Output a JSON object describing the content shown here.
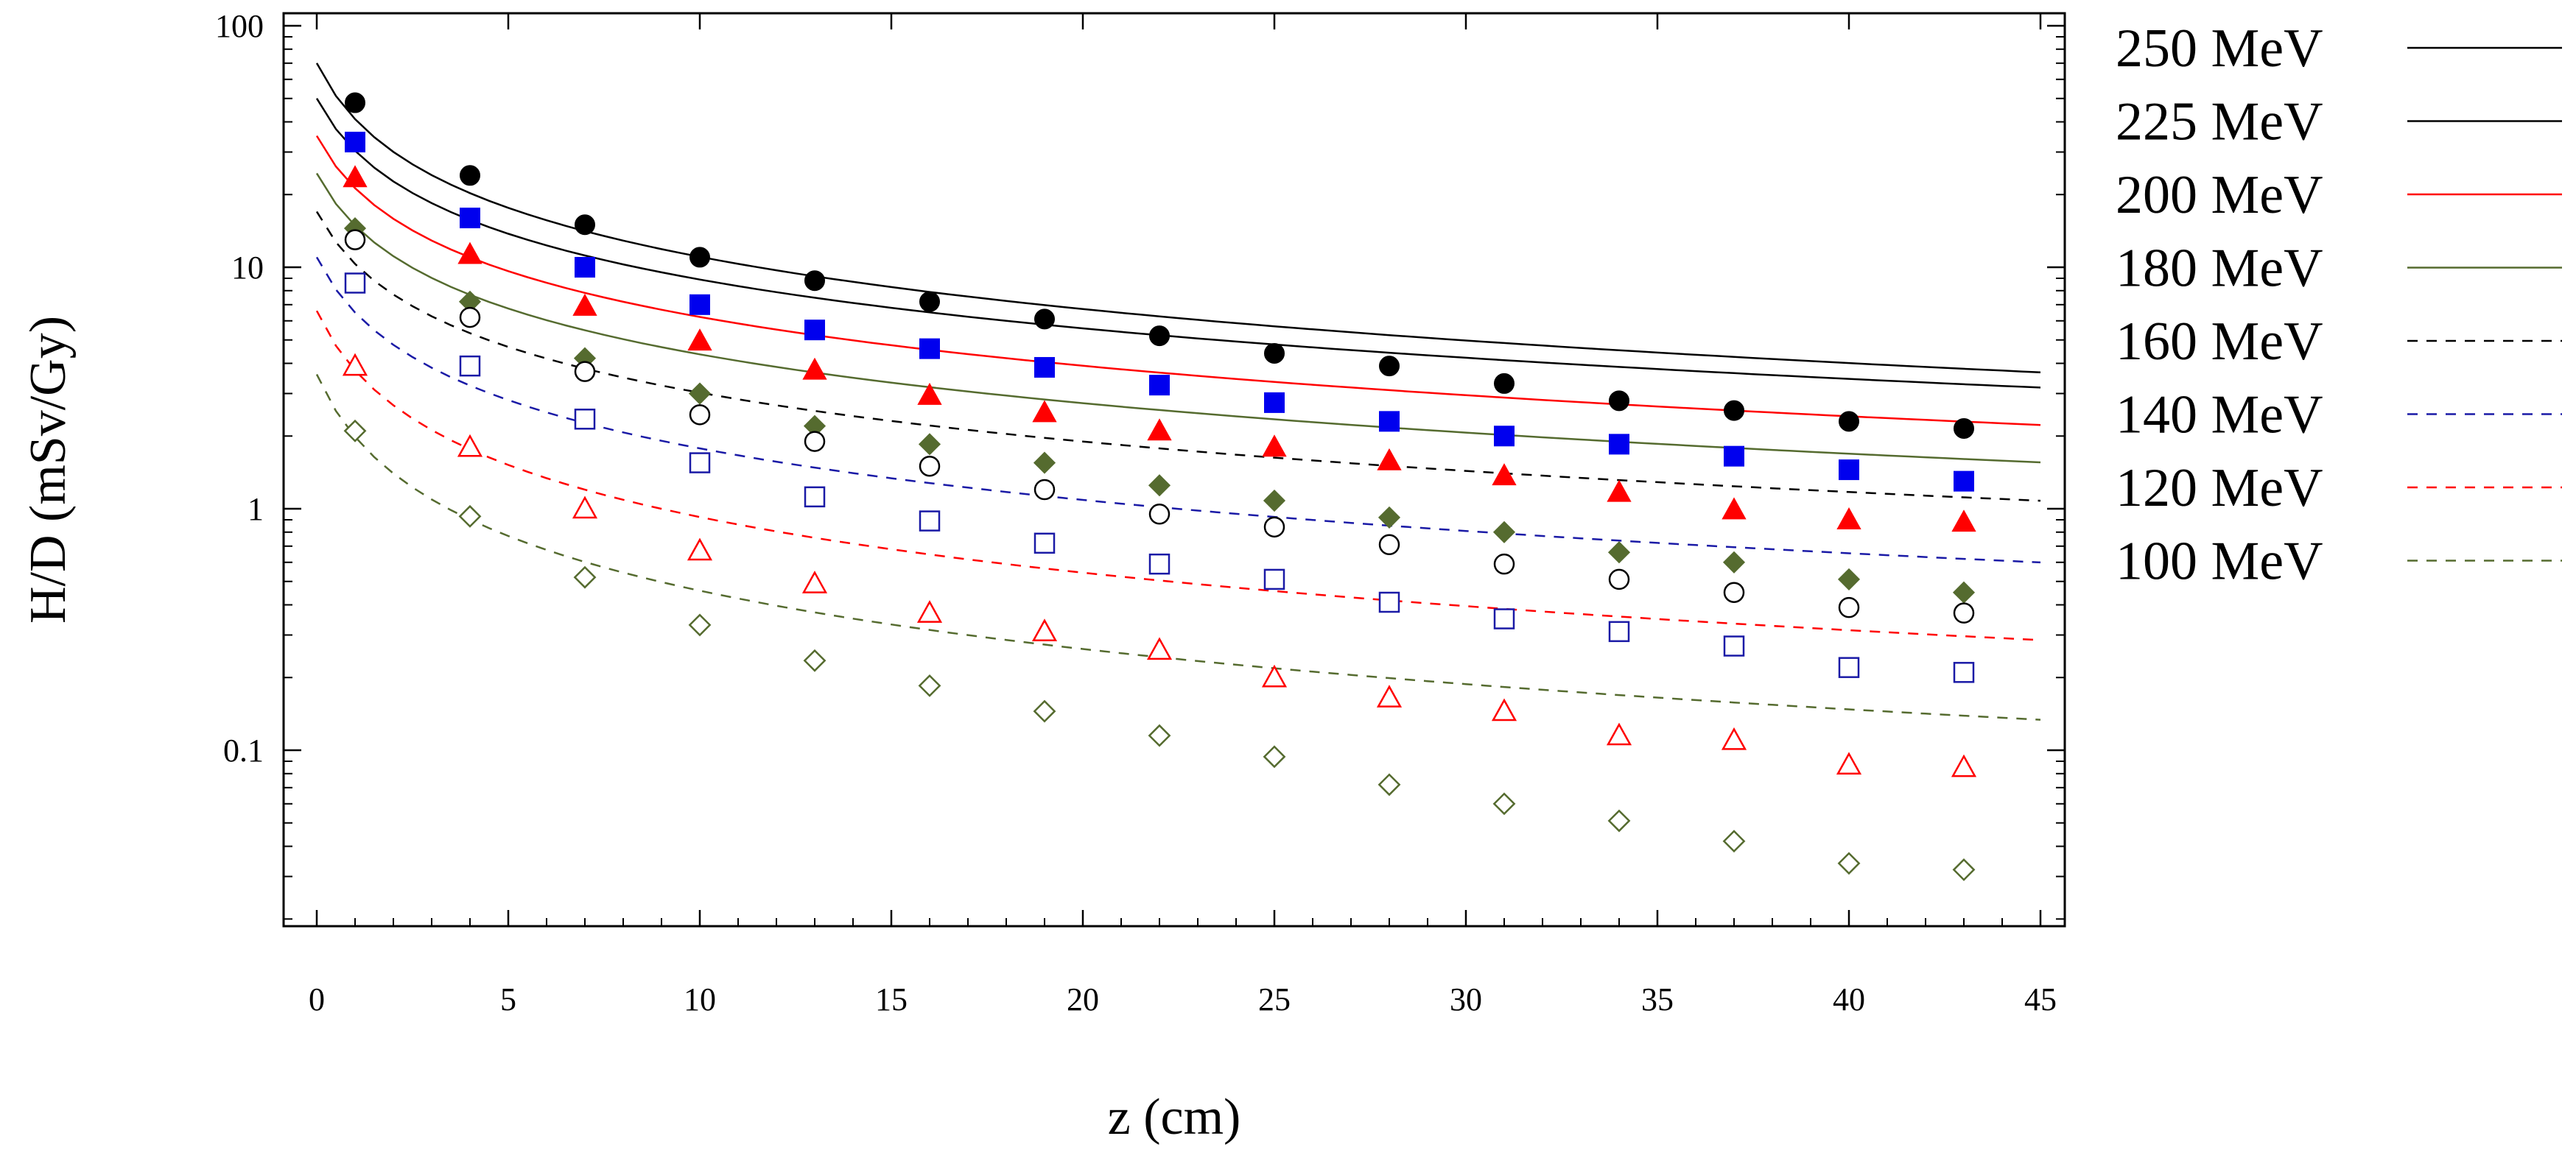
{
  "chart_data": {
    "type": "scatter",
    "title": "",
    "xlabel": "z (cm)",
    "ylabel": "H/D (mSv/Gy)",
    "xlim": [
      -1,
      46
    ],
    "ylim": [
      0.022,
      120
    ],
    "yscale": "log",
    "x_ticks": [
      0,
      5,
      10,
      15,
      20,
      25,
      30,
      35,
      40,
      45
    ],
    "x_tick_labels": [
      "0",
      "5",
      "10",
      "15",
      "20",
      "25",
      "30",
      "35",
      "40",
      "45"
    ],
    "y_ticks": [
      0.1,
      1,
      10,
      100
    ],
    "y_tick_labels": [
      "0.1",
      "1",
      "10",
      "100"
    ],
    "legend_position": "outside-right",
    "x": [
      1,
      4,
      7,
      10,
      13,
      16,
      19,
      22,
      25,
      28,
      31,
      34,
      37,
      40,
      43
    ],
    "series": [
      {
        "name": "250 MeV",
        "color": "#000000",
        "line": "solid",
        "marker": "circle-filled",
        "values": [
          48,
          24,
          15,
          11,
          8.8,
          7.2,
          6.1,
          5.2,
          4.4,
          3.9,
          3.3,
          2.8,
          2.55,
          2.3,
          2.15
        ],
        "fit_a": 70,
        "fit_b": 0.77
      },
      {
        "name": "225 MeV",
        "color": "#0000ee",
        "fit_color": "#000000",
        "line": "solid",
        "marker": "square-filled",
        "values": [
          33,
          16,
          10,
          7.0,
          5.5,
          4.6,
          3.85,
          3.25,
          2.75,
          2.3,
          2.0,
          1.85,
          1.65,
          1.45,
          1.3
        ],
        "fit_a": 50,
        "fit_b": 0.72
      },
      {
        "name": "200 MeV",
        "color": "#ff0000",
        "line": "solid",
        "marker": "triangle-filled",
        "values": [
          23.5,
          11.3,
          6.9,
          4.95,
          3.75,
          2.95,
          2.5,
          2.1,
          1.8,
          1.58,
          1.37,
          1.17,
          0.99,
          0.9,
          0.88
        ],
        "fit_a": 35,
        "fit_b": 0.72
      },
      {
        "name": "180 MeV",
        "color": "#556b2f",
        "line": "solid",
        "marker": "diamond-filled",
        "values": [
          14.5,
          7.2,
          4.2,
          3.0,
          2.2,
          1.85,
          1.55,
          1.25,
          1.08,
          0.92,
          0.8,
          0.66,
          0.6,
          0.51,
          0.45
        ],
        "fit_a": 24.5,
        "fit_b": 0.72
      },
      {
        "name": "160 MeV",
        "color": "#000000",
        "line": "dashed",
        "marker": "circle-open",
        "values": [
          13,
          6.2,
          3.7,
          2.45,
          1.9,
          1.5,
          1.2,
          0.95,
          0.84,
          0.71,
          0.59,
          0.51,
          0.45,
          0.39,
          0.37
        ],
        "fit_a": 17,
        "fit_b": 0.72
      },
      {
        "name": "140 MeV",
        "color": "#1a1aa6",
        "line": "dashed",
        "marker": "square-open",
        "values": [
          8.6,
          3.9,
          2.35,
          1.55,
          1.12,
          0.89,
          0.72,
          0.59,
          0.51,
          0.41,
          0.35,
          0.31,
          0.27,
          0.22,
          0.21
        ],
        "fit_a": 11,
        "fit_b": 0.76
      },
      {
        "name": "120 MeV",
        "color": "#ff0000",
        "line": "dashed",
        "marker": "triangle-open",
        "values": [
          3.9,
          1.8,
          1.0,
          0.67,
          0.49,
          0.37,
          0.31,
          0.26,
          0.2,
          0.165,
          0.145,
          0.115,
          0.11,
          0.087,
          0.085
        ],
        "fit_a": 6.6,
        "fit_b": 0.82
      },
      {
        "name": "100 MeV",
        "color": "#556b2f",
        "line": "dashed",
        "marker": "diamond-open",
        "values": [
          2.1,
          0.93,
          0.52,
          0.33,
          0.235,
          0.185,
          0.145,
          0.115,
          0.094,
          0.072,
          0.06,
          0.051,
          0.042,
          0.034,
          0.032
        ],
        "fit_a": 3.6,
        "fit_b": 0.86
      }
    ]
  }
}
